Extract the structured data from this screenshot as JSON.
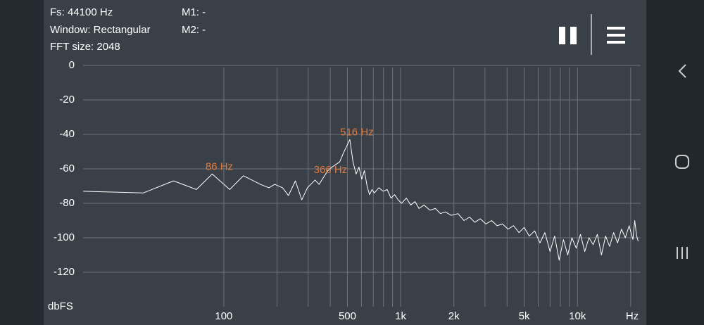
{
  "header": {
    "fs": "Fs: 44100 Hz",
    "window": "Window: Rectangular",
    "fft_size": "FFT size: 2048",
    "m1": "M1: -",
    "m2": "M2: -"
  },
  "chart_data": {
    "type": "line",
    "x_label": "Hz",
    "y_label": "dbFS",
    "log_x": true,
    "grid": true,
    "xlim": [
      16,
      22050
    ],
    "ylim": [
      -140,
      0
    ],
    "xticks": [
      100,
      500,
      {
        "value": 1000,
        "label": "1k"
      },
      {
        "value": 2000,
        "label": "2k"
      },
      {
        "value": 5000,
        "label": "5k"
      },
      {
        "value": 10000,
        "label": "10k"
      }
    ],
    "x_minor_ticks": [
      200,
      300,
      400,
      600,
      700,
      800,
      900,
      3000,
      4000,
      6000,
      7000,
      8000,
      9000,
      20000
    ],
    "yticks": [
      0,
      -20,
      -40,
      -60,
      -80,
      -100,
      -120
    ],
    "annotations": [
      {
        "text": "86 Hz",
        "x": 86,
        "y": -63,
        "color": "#e07a3c"
      },
      {
        "text": "366 Hz",
        "x": 366,
        "y": -65,
        "color": "#e07a3c"
      },
      {
        "text": "516 Hz",
        "x": 516,
        "y": -43,
        "color": "#e07a3c"
      }
    ],
    "x": [
      16,
      35,
      52,
      70,
      86,
      108,
      129,
      161,
      180,
      194,
      215,
      232,
      254,
      276,
      297,
      328,
      346,
      366,
      388,
      409,
      452,
      474,
      516,
      538,
      560,
      581,
      603,
      624,
      646,
      667,
      689,
      710,
      753,
      796,
      839,
      882,
      925,
      968,
      1012,
      1077,
      1141,
      1206,
      1270,
      1357,
      1464,
      1572,
      1680,
      1787,
      1938,
      2110,
      2282,
      2455,
      2627,
      2820,
      3036,
      3273,
      3510,
      3768,
      4048,
      4350,
      4672,
      4995,
      5340,
      5728,
      6137,
      6546,
      6998,
      7429,
      7881,
      8333,
      8807,
      9302,
      9840,
      10400,
      11000,
      11620,
      12270,
      12960,
      13670,
      14420,
      15200,
      16020,
      16860,
      17740,
      18650,
      19600,
      20590,
      21080,
      21620,
      22050
    ],
    "series": [
      {
        "color": "#ffffff",
        "values": [
          -73,
          -74,
          -67,
          -72,
          -63,
          -72,
          -64,
          -69,
          -71,
          -69,
          -71,
          -75.5,
          -67,
          -78,
          -71,
          -66.5,
          -69,
          -65,
          -61,
          -59,
          -56,
          -51,
          -43,
          -56,
          -63,
          -59,
          -66,
          -61,
          -70,
          -75,
          -72,
          -74,
          -71,
          -73,
          -72,
          -77,
          -75,
          -78,
          -80,
          -77,
          -81,
          -79,
          -83,
          -81,
          -84,
          -83,
          -86,
          -85,
          -87,
          -86,
          -90,
          -88,
          -91,
          -89,
          -92,
          -90,
          -93,
          -92,
          -95,
          -93,
          -97,
          -94,
          -99,
          -96,
          -103,
          -97,
          -108,
          -99,
          -113,
          -101,
          -110,
          -100,
          -106,
          -98,
          -108,
          -100,
          -104,
          -98,
          -110,
          -99,
          -105,
          -97,
          -103,
          -95,
          -100,
          -93,
          -101,
          -90,
          -99,
          -102
        ]
      }
    ]
  }
}
